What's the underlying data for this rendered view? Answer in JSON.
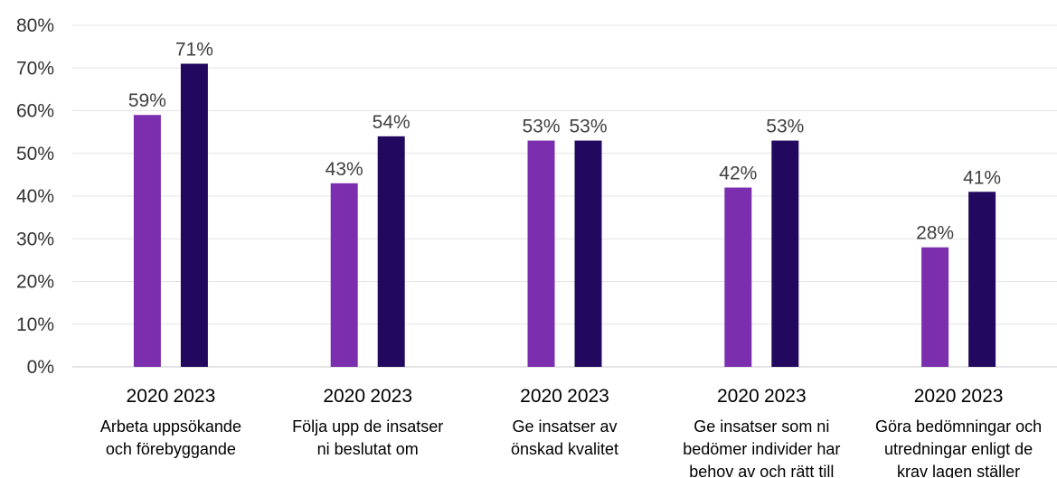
{
  "chart_data": {
    "type": "bar",
    "y_tick_labels": [
      "0%",
      "10%",
      "20%",
      "30%",
      "40%",
      "50%",
      "60%",
      "70%",
      "80%"
    ],
    "ylim": [
      0,
      80
    ],
    "grid": true,
    "legend": "none",
    "groups": [
      {
        "category_lines": [
          "Arbeta uppsökande",
          "och förebyggande"
        ],
        "bars": [
          {
            "year": "2020",
            "value": 59,
            "label": "59%"
          },
          {
            "year": "2023",
            "value": 71,
            "label": "71%"
          }
        ]
      },
      {
        "category_lines": [
          "Följa upp de insatser",
          "ni beslutat om"
        ],
        "bars": [
          {
            "year": "2020",
            "value": 43,
            "label": "43%"
          },
          {
            "year": "2023",
            "value": 54,
            "label": "54%"
          }
        ]
      },
      {
        "category_lines": [
          "Ge insatser av",
          "önskad kvalitet"
        ],
        "bars": [
          {
            "year": "2020",
            "value": 53,
            "label": "53%"
          },
          {
            "year": "2023",
            "value": 53,
            "label": "53%"
          }
        ]
      },
      {
        "category_lines": [
          "Ge insatser som ni",
          "bedömer individer har",
          "behov av och rätt till"
        ],
        "bars": [
          {
            "year": "2020",
            "value": 42,
            "label": "42%"
          },
          {
            "year": "2023",
            "value": 53,
            "label": "53%"
          }
        ]
      },
      {
        "category_lines": [
          "Göra bedömningar och",
          "utredningar enligt de",
          "krav lagen ställer"
        ],
        "bars": [
          {
            "year": "2020",
            "value": 28,
            "label": "28%"
          },
          {
            "year": "2023",
            "value": 41,
            "label": "41%"
          }
        ]
      }
    ],
    "colors": {
      "2020": "#7B2FAF",
      "2023": "#22085F"
    }
  }
}
